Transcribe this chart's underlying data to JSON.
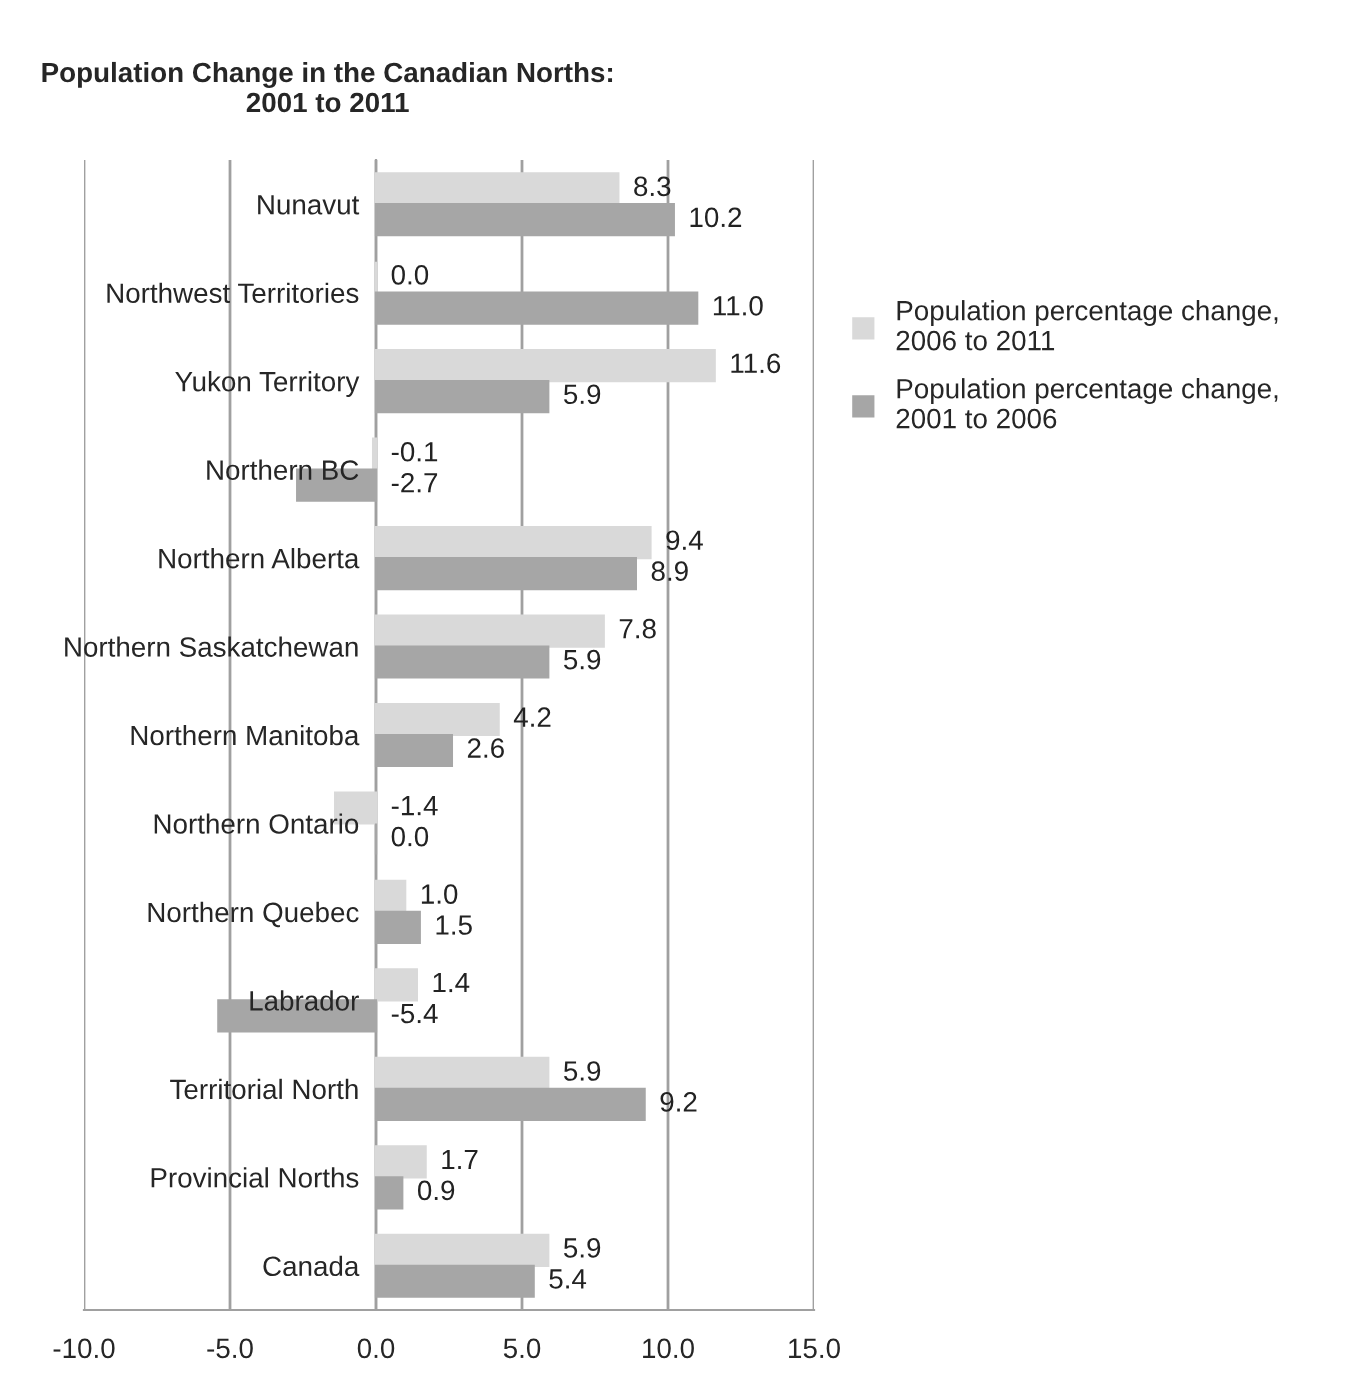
{
  "chart_data": {
    "type": "bar",
    "orientation": "horizontal",
    "title": "Population Change in the Canadian Norths:\n2001 to 2011",
    "categories": [
      "Nunavut",
      "Northwest Territories",
      "Yukon Territory",
      "Northern BC",
      "Northern Alberta",
      "Northern Saskatchewan",
      "Northern Manitoba",
      "Northern Ontario",
      "Northern Quebec",
      "Labrador",
      "Territorial North",
      "Provincial Norths",
      "Canada"
    ],
    "series": [
      {
        "name": "Population percentage change, 2006 to 2011",
        "color": "#d9d9d9",
        "values": [
          8.3,
          0.0,
          11.6,
          -0.1,
          9.4,
          7.8,
          4.2,
          -1.4,
          1.0,
          1.4,
          5.9,
          1.7,
          5.9
        ],
        "value_labels": [
          "8.3",
          "0.0",
          "11.6",
          "-0.1",
          "9.4",
          "7.8",
          "4.2",
          "-1.4",
          "1.0",
          "1.4",
          "5.9",
          "1.7",
          "5.9"
        ]
      },
      {
        "name": "Population percentage change, 2001 to 2006",
        "color": "#a6a6a6",
        "values": [
          10.2,
          11.0,
          5.9,
          -2.7,
          8.9,
          5.9,
          2.6,
          0.0,
          1.5,
          -5.4,
          9.2,
          0.9,
          5.4
        ],
        "value_labels": [
          "10.2",
          "11.0",
          "5.9",
          "-2.7",
          "8.9",
          "5.9",
          "2.6",
          "0.0",
          "1.5",
          "-5.4",
          "9.2",
          "0.9",
          "5.4"
        ]
      }
    ],
    "xlim": [
      -10,
      15
    ],
    "xticks": [
      {
        "value": -10,
        "label": "-10.0"
      },
      {
        "value": -5,
        "label": "-5.0"
      },
      {
        "value": 0,
        "label": "0.0"
      },
      {
        "value": 5,
        "label": "5.0"
      },
      {
        "value": 10,
        "label": "10.0"
      },
      {
        "value": 15,
        "label": "15.0"
      }
    ],
    "grid": "x",
    "legend": "right"
  }
}
